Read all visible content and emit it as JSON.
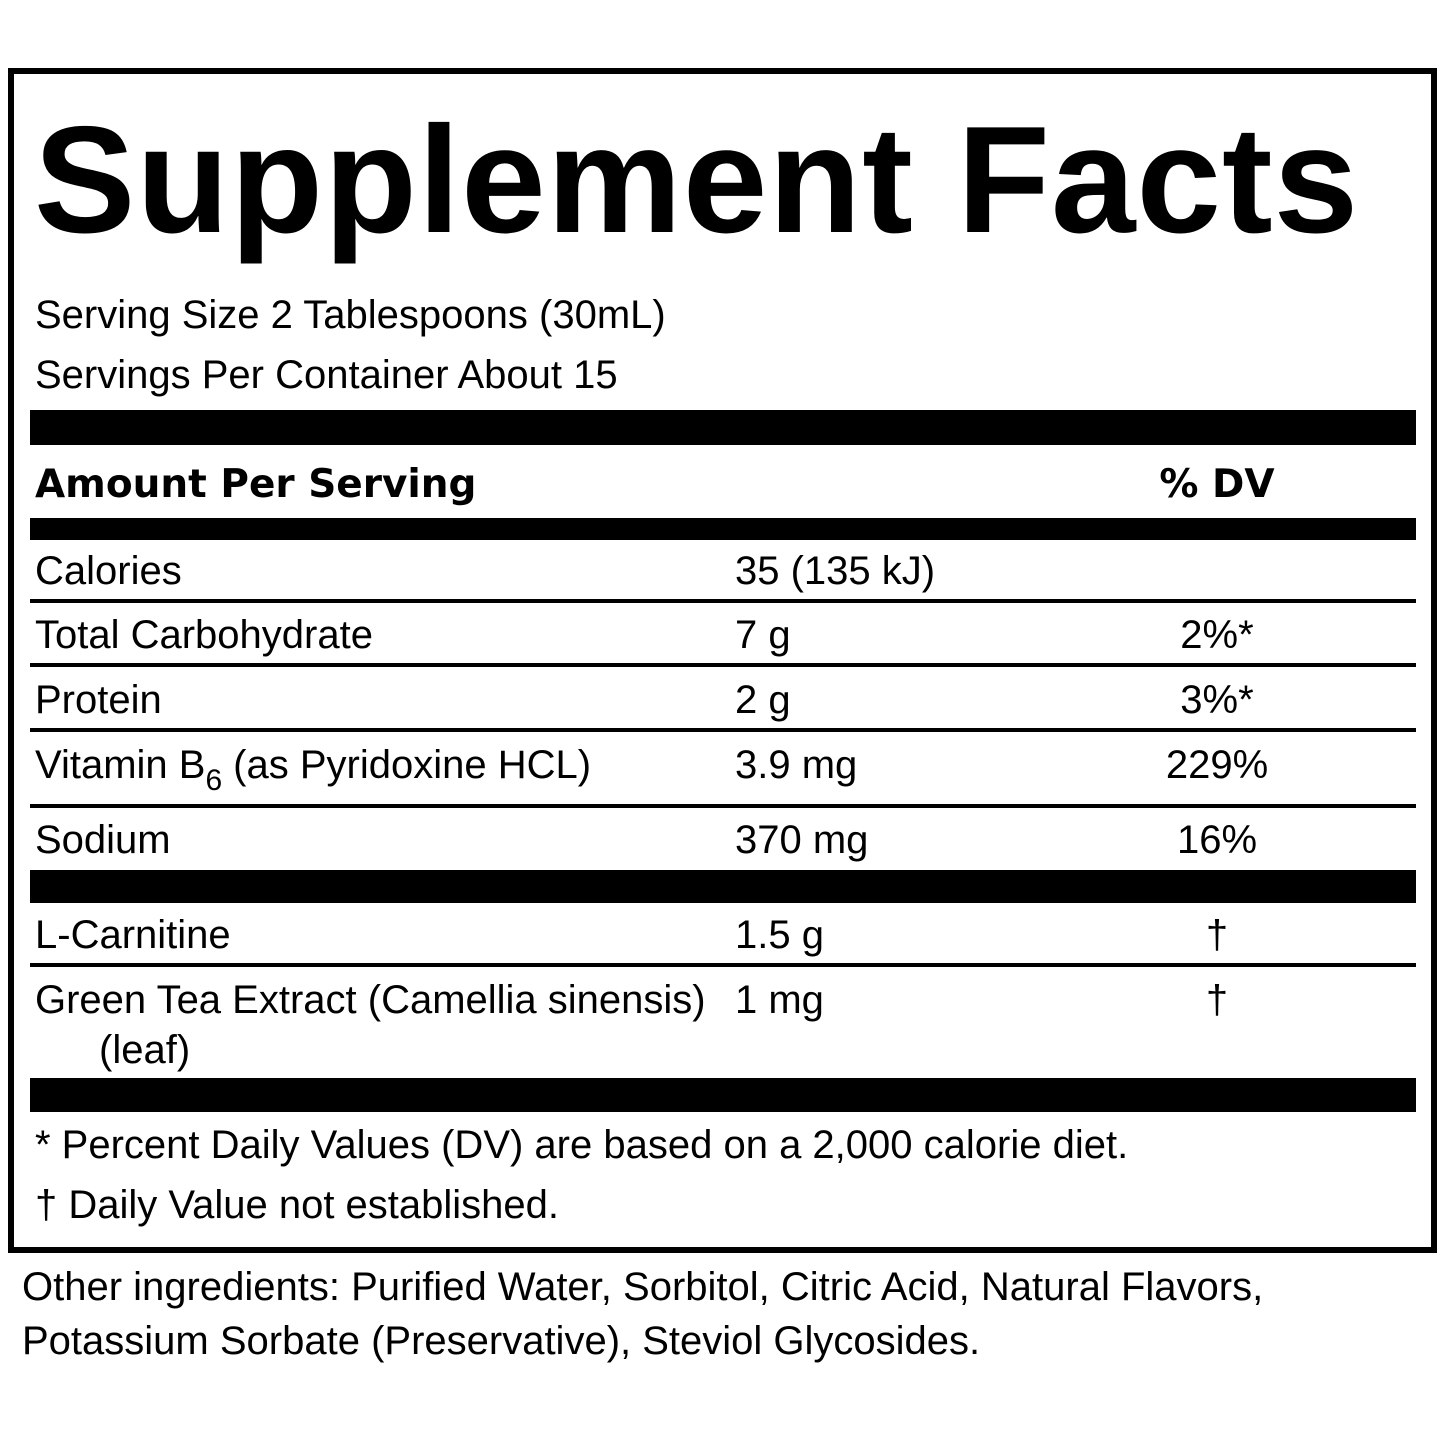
{
  "title": "Supplement Facts",
  "serving_size": "Serving Size 2 Tablespoons (30mL)",
  "servings_per_container": "Servings Per Container About 15",
  "header": {
    "amount": "Amount Per Serving",
    "dv": "% DV"
  },
  "rows": [
    {
      "name": "Calories",
      "amount": "35 (135 kJ)"
    },
    {
      "name": "Total Carbohydrate",
      "amount": "7 g",
      "dv": "2%*"
    },
    {
      "name": "Protein",
      "amount": "2 g",
      "dv": "3%*"
    },
    {
      "name": "Vitamin B",
      "sub": "6",
      "name_rest": "(as Pyridoxine HCL)",
      "amount": "3.9 mg",
      "dv": "229%"
    },
    {
      "name": "Sodium",
      "amount": "370 mg",
      "dv": "16%"
    },
    {
      "name": "L-Carnitine",
      "amount": "1.5 g",
      "dv": "†"
    },
    {
      "name": "Green Tea Extract (Camellia sinensis)(leaf)",
      "amount": "1 mg",
      "dv": "†"
    }
  ],
  "footnotes": [
    "* Percent Daily Values (DV) are based on a 2,000 calorie diet.",
    "† Daily Value not established."
  ],
  "other_ingredients": "Other ingredients: Purified Water, Sorbitol, Citric Acid, Natural Flavors, Potassium Sorbate (Preservative), Steviol Glycosides."
}
